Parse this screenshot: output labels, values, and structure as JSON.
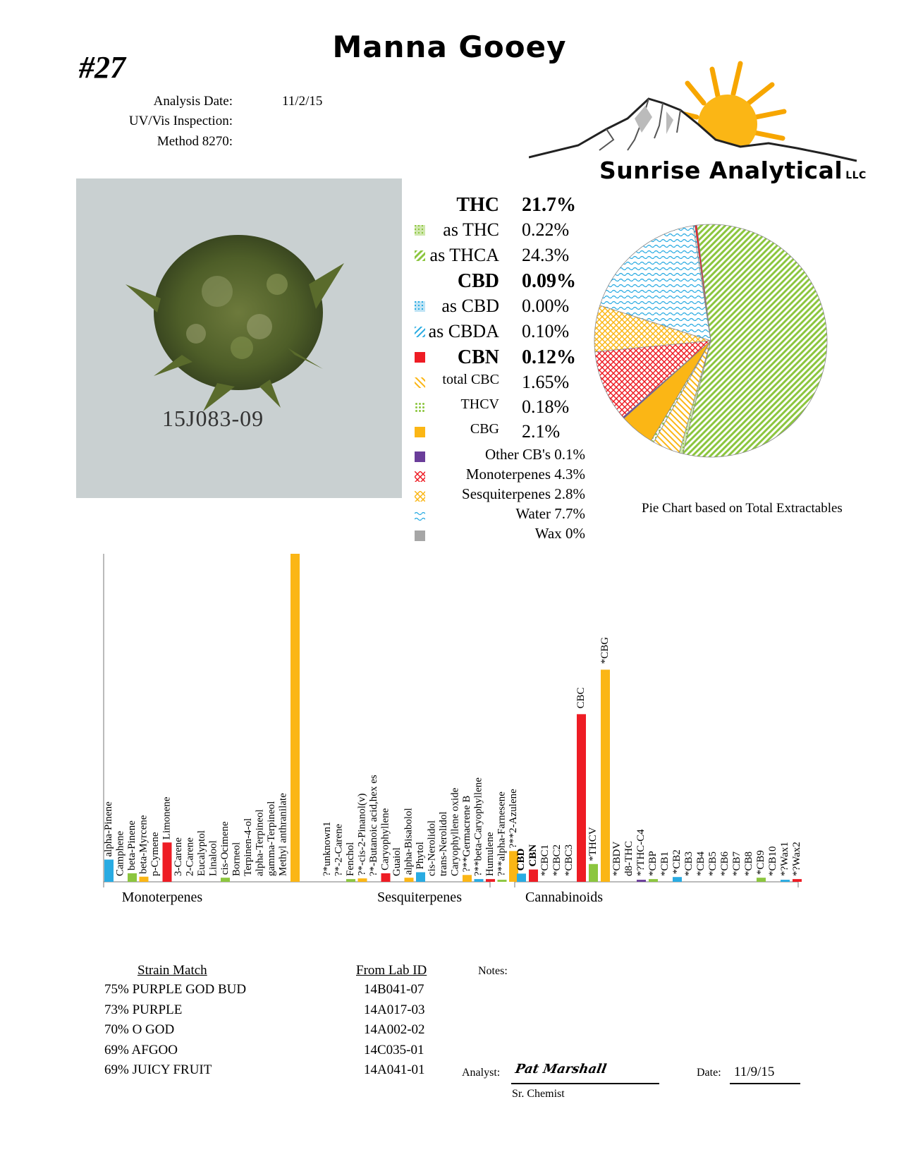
{
  "header": {
    "number": "#27",
    "title": "Manna Gooey"
  },
  "meta": {
    "analysis_date_label": "Analysis Date:",
    "analysis_date": "11/2/15",
    "uv_label": "UV/Vis Inspection:",
    "method_label": "Method 8270:"
  },
  "logo": {
    "name": "Sunrise Analytical",
    "suffix": "LLC"
  },
  "photo": {
    "sample_id": "15J083-09"
  },
  "legend": [
    {
      "label": "THC",
      "value": "21.7%",
      "bold": true,
      "size": 28
    },
    {
      "label": "as THC",
      "value": "0.22%",
      "swatch": "hatch-green",
      "size": 26
    },
    {
      "label": "as THCA",
      "value": "24.3%",
      "swatch": "diag-green",
      "size": 26
    },
    {
      "label": "CBD",
      "value": "0.09%",
      "bold": true,
      "size": 28
    },
    {
      "label": "as CBD",
      "value": "0.00%",
      "swatch": "hatch-blue",
      "size": 26
    },
    {
      "label": "as CBDA",
      "value": "0.10%",
      "swatch": "diag-blue",
      "size": 26
    },
    {
      "label": "CBN",
      "value": "0.12%",
      "bold": true,
      "swatch": "solid-red",
      "size": 28
    },
    {
      "label": "total CBC",
      "value": "1.65%",
      "swatch": "diag-orange",
      "size": 20,
      "valsize": 26
    },
    {
      "label": "THCV",
      "value": "0.18%",
      "swatch": "dots-green",
      "size": 20,
      "valsize": 26
    },
    {
      "label": "CBG",
      "value": "2.1%",
      "swatch": "solid-orange",
      "size": 20,
      "valsize": 26
    },
    {
      "full": "Other CB's 0.1%",
      "swatch": "solid-purple",
      "size": 21
    },
    {
      "full": "Monoterpenes 4.3%",
      "swatch": "cross-red",
      "size": 21
    },
    {
      "full": "Sesquiterpenes 2.8%",
      "swatch": "cross-yellow",
      "size": 21
    },
    {
      "full": "Water 7.7%",
      "swatch": "wave-blue",
      "size": 21
    },
    {
      "full": "Wax 0%",
      "swatch": "solid-gray",
      "size": 21
    }
  ],
  "colors": {
    "green": "#8cc63f",
    "blue": "#29abe2",
    "red": "#ee1c24",
    "orange": "#fbb615",
    "purple": "#6a3d9a",
    "gray": "#a6a6a6",
    "yellow": "#f7d26a"
  },
  "pie_caption": "Pie Chart based on Total Extractables",
  "chart_data": [
    {
      "type": "pie",
      "slices": [
        {
          "name": "as THCA",
          "value": 24.3,
          "pattern": "diag-green"
        },
        {
          "name": "as THC",
          "value": 0.22,
          "pattern": "hatch-green"
        },
        {
          "name": "total CBC",
          "value": 1.65,
          "pattern": "diag-orange"
        },
        {
          "name": "THCV",
          "value": 0.18,
          "pattern": "dots-green"
        },
        {
          "name": "CBG",
          "value": 2.1,
          "pattern": "solid-orange"
        },
        {
          "name": "Other CB's",
          "value": 0.1,
          "pattern": "solid-purple"
        },
        {
          "name": "Monoterpenes",
          "value": 4.3,
          "pattern": "cross-red"
        },
        {
          "name": "Sesquiterpenes",
          "value": 2.8,
          "pattern": "cross-yellow"
        },
        {
          "name": "Water",
          "value": 7.7,
          "pattern": "wave-blue"
        },
        {
          "name": "Wax",
          "value": 0,
          "pattern": "solid-gray"
        },
        {
          "name": "as CBDA",
          "value": 0.1,
          "pattern": "diag-blue"
        },
        {
          "name": "as CBD",
          "value": 0.0,
          "pattern": "hatch-blue"
        },
        {
          "name": "CBN",
          "value": 0.12,
          "pattern": "solid-red"
        }
      ]
    },
    {
      "type": "bar",
      "groups": [
        {
          "name": "Monoterpenes",
          "bars": [
            {
              "label": "alpha-Pinene",
              "value": 0.065,
              "color": "blue"
            },
            {
              "label": "Camphene",
              "value": 0.0,
              "color": "blue"
            },
            {
              "label": "beta-Pinene",
              "value": 0.025,
              "color": "green"
            },
            {
              "label": "beta-Myrcene",
              "value": 0.015,
              "color": "orange"
            },
            {
              "label": "p-Cymene",
              "value": 0.0,
              "color": "orange"
            },
            {
              "label": "Limonene",
              "value": 0.115,
              "color": "red"
            },
            {
              "label": "3-Carene",
              "value": 0.0,
              "color": "red"
            },
            {
              "label": "2-Carene",
              "value": 0.0,
              "color": "red"
            },
            {
              "label": "Eucalyptol",
              "value": 0.0,
              "color": "green"
            },
            {
              "label": "Linalool",
              "value": 0.0,
              "color": "green"
            },
            {
              "label": "cis-Ocimene",
              "value": 0.012,
              "color": "green"
            },
            {
              "label": "Borneol",
              "value": 0.0,
              "color": "green"
            },
            {
              "label": "Terpinen-4-ol",
              "value": 0.0,
              "color": "green"
            },
            {
              "label": "alpha-Terpineol",
              "value": 0.0,
              "color": "green"
            },
            {
              "label": "gamma-Terpineol",
              "value": 0.0,
              "color": "green"
            },
            {
              "label": "Methyl anthranilate",
              "value": 0.0,
              "color": "green"
            },
            {
              "label": "",
              "value": 1.0,
              "color": "orange"
            }
          ]
        },
        {
          "name": "Sesquiterpenes",
          "bars": [
            {
              "label": "?*unknown1",
              "value": 0.0,
              "color": "orange"
            },
            {
              "label": "?*-2-Carene",
              "value": 0.0,
              "color": "orange"
            },
            {
              "label": "Fenchol",
              "value": 0.008,
              "color": "green"
            },
            {
              "label": "?*-cis-2-Pinanol(v)",
              "value": 0.01,
              "color": "orange"
            },
            {
              "label": "?*-Butanoic acid,hex es",
              "value": 0.0,
              "color": "orange"
            },
            {
              "label": "Caryophyllene",
              "value": 0.025,
              "color": "red"
            },
            {
              "label": "Guaiol",
              "value": 0.0,
              "color": "red"
            },
            {
              "label": "alpha-Bisabolol",
              "value": 0.012,
              "color": "orange"
            },
            {
              "label": "Phytol",
              "value": 0.028,
              "color": "blue"
            },
            {
              "label": "cis-Nerolidol",
              "value": 0.0,
              "color": "blue"
            },
            {
              "label": "trans-Nerolidol",
              "value": 0.0,
              "color": "blue"
            },
            {
              "label": "Caryophyllene oxide",
              "value": 0.0,
              "color": "blue"
            },
            {
              "label": "?**Germacrene B",
              "value": 0.02,
              "color": "orange"
            },
            {
              "label": "?**beta-Caryophyllene",
              "value": 0.008,
              "color": "blue"
            },
            {
              "label": "Humulene",
              "value": 0.008,
              "color": "red"
            },
            {
              "label": "?**alpha-Farnesene",
              "value": 0.006,
              "color": "green"
            },
            {
              "label": "?**2-Azulene",
              "value": 0.09,
              "color": "orange"
            }
          ]
        },
        {
          "name": "Cannabinoids",
          "bars": [
            {
              "label": "CBD",
              "value": 0.024,
              "color": "blue",
              "bold": true
            },
            {
              "label": "CBN",
              "value": 0.036,
              "color": "red",
              "bold": true
            },
            {
              "label": "*CBC1",
              "value": 0.0,
              "color": "red"
            },
            {
              "label": "*CBC2",
              "value": 0.0,
              "color": "red"
            },
            {
              "label": "*CBC3",
              "value": 0.0,
              "color": "red"
            },
            {
              "label": "CBC",
              "value": 0.49,
              "color": "red",
              "top": true
            },
            {
              "label": "*THCV",
              "value": 0.052,
              "color": "green"
            },
            {
              "label": "*CBG",
              "value": 0.62,
              "color": "orange",
              "top": true
            },
            {
              "label": "*CBDV",
              "value": 0.0,
              "color": "green"
            },
            {
              "label": "d8-THC",
              "value": 0.0,
              "color": "green"
            },
            {
              "label": "*?THC-C4",
              "value": 0.006,
              "color": "purple"
            },
            {
              "label": "*CBP",
              "value": 0.008,
              "color": "green"
            },
            {
              "label": "*CB1",
              "value": 0.0,
              "color": "green"
            },
            {
              "label": "*CB2",
              "value": 0.014,
              "color": "blue"
            },
            {
              "label": "*CB3",
              "value": 0.0,
              "color": "blue"
            },
            {
              "label": "*CB4",
              "value": 0.0,
              "color": "blue"
            },
            {
              "label": "*CB5",
              "value": 0.0,
              "color": "blue"
            },
            {
              "label": "*CB6",
              "value": 0.0,
              "color": "blue"
            },
            {
              "label": "*CB7",
              "value": 0.0,
              "color": "blue"
            },
            {
              "label": "*CB8",
              "value": 0.0,
              "color": "blue"
            },
            {
              "label": "*CB9",
              "value": 0.012,
              "color": "green"
            },
            {
              "label": "*CB10",
              "value": 0.0,
              "color": "green"
            },
            {
              "label": "*?Wax1",
              "value": 0.006,
              "color": "blue"
            },
            {
              "label": "*?Wax2",
              "value": 0.008,
              "color": "red"
            }
          ]
        }
      ]
    }
  ],
  "strain": {
    "header": "Strain Match",
    "lab_header": "From Lab ID",
    "rows": [
      {
        "match": "75% PURPLE GOD BUD",
        "lab": "14B041-07"
      },
      {
        "match": "73% PURPLE",
        "lab": "14A017-03"
      },
      {
        "match": "70% O GOD",
        "lab": "14A002-02"
      },
      {
        "match": "69% AFGOO",
        "lab": "14C035-01"
      },
      {
        "match": "69% JUICY FRUIT",
        "lab": "14A041-01"
      }
    ]
  },
  "notes_label": "Notes:",
  "signature": {
    "analyst_label": "Analyst:",
    "analyst_name": "Pat Marshall",
    "role": "Sr. Chemist",
    "date_label": "Date:",
    "date": "11/9/15"
  }
}
